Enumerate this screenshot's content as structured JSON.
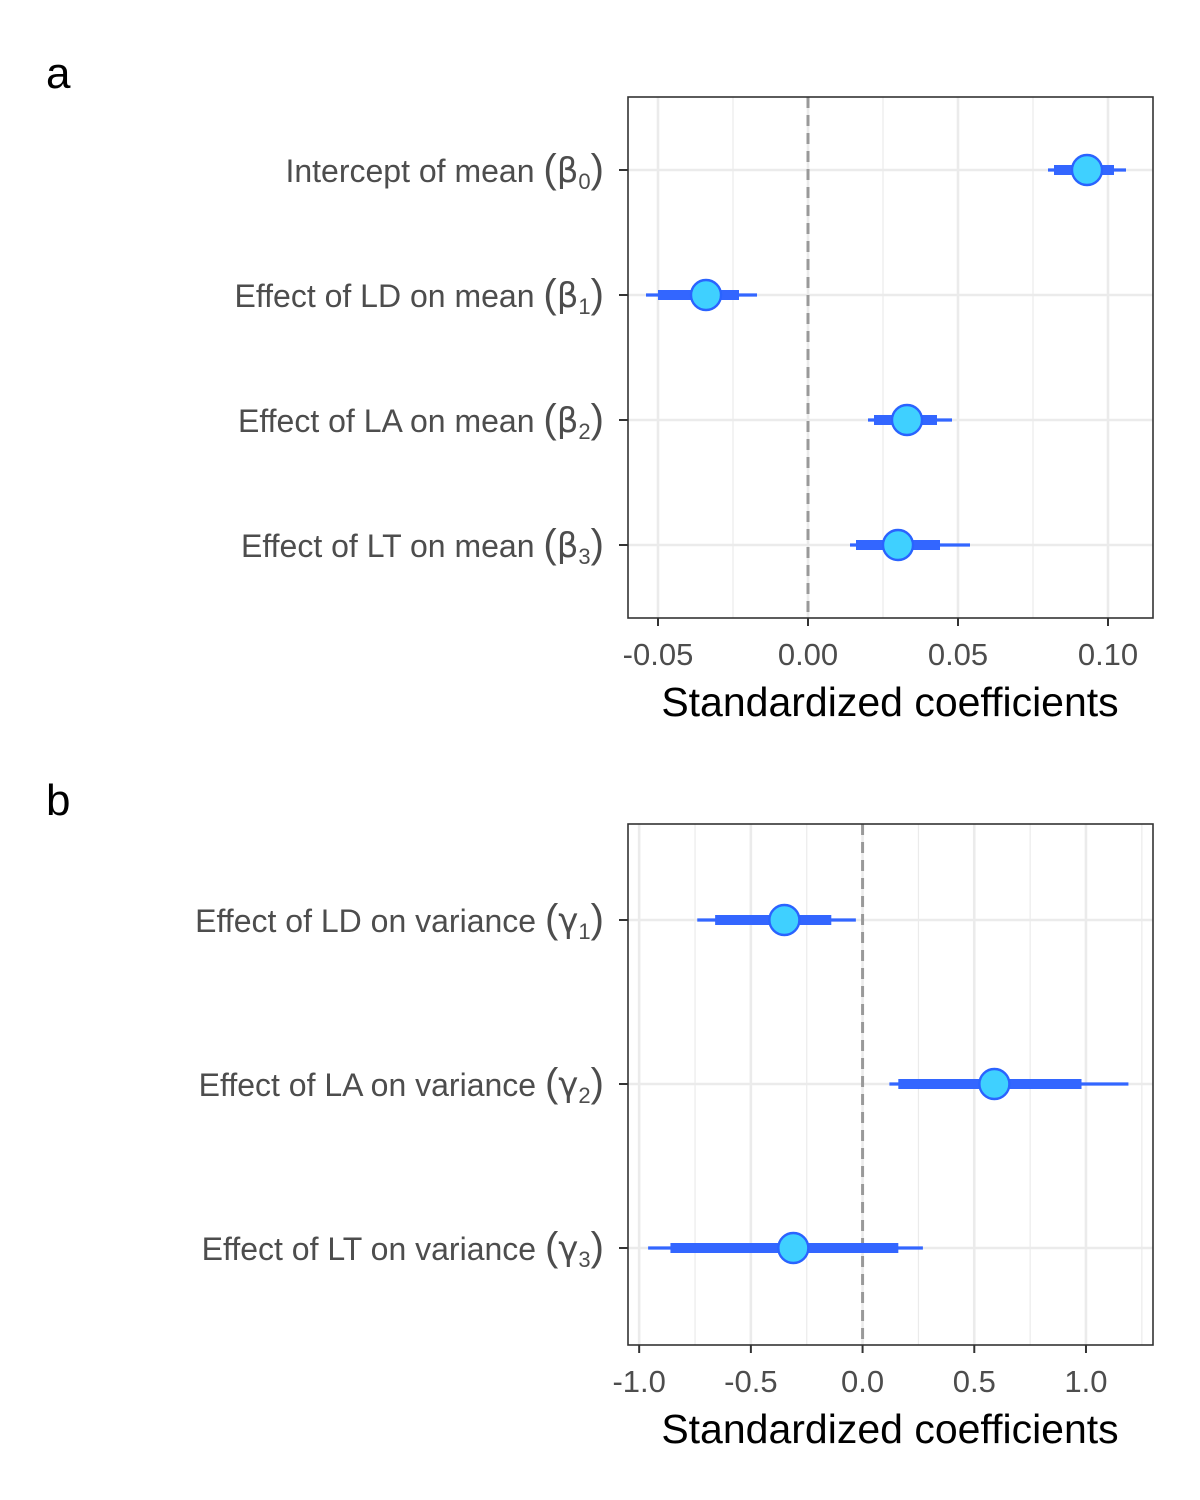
{
  "colors": {
    "point_fill": "#3fd0ff",
    "point_stroke": "#2a63ff",
    "interval": "#3366ff",
    "zero_line": "#999999",
    "grid": "#ebebeb",
    "panel_border": "#333333"
  },
  "chart_data": [
    {
      "panel_label": "a",
      "type": "scatter",
      "subtype": "coefficient-interval-plot",
      "xlabel": "Standardized coefficients",
      "xlim": [
        -0.06,
        0.115
      ],
      "x_ticks": [
        -0.05,
        0.0,
        0.05,
        0.1
      ],
      "x_tick_labels": [
        "-0.05",
        "0.00",
        "0.05",
        "0.10"
      ],
      "reference_line": 0,
      "grid": true,
      "points": [
        {
          "label": "Intercept of mean",
          "symbol": "β",
          "subscript": "0",
          "estimate": 0.093,
          "inner": [
            0.082,
            0.102
          ],
          "outer": [
            0.08,
            0.106
          ]
        },
        {
          "label": "Effect of LD on mean",
          "symbol": "β",
          "subscript": "1",
          "estimate": -0.034,
          "inner": [
            -0.05,
            -0.023
          ],
          "outer": [
            -0.054,
            -0.017
          ]
        },
        {
          "label": "Effect of LA on mean",
          "symbol": "β",
          "subscript": "2",
          "estimate": 0.033,
          "inner": [
            0.022,
            0.043
          ],
          "outer": [
            0.02,
            0.048
          ]
        },
        {
          "label": "Effect of LT on mean",
          "symbol": "β",
          "subscript": "3",
          "estimate": 0.03,
          "inner": [
            0.016,
            0.044
          ],
          "outer": [
            0.014,
            0.054
          ]
        }
      ]
    },
    {
      "panel_label": "b",
      "type": "scatter",
      "subtype": "coefficient-interval-plot",
      "xlabel": "Standardized coefficients",
      "xlim": [
        -1.05,
        1.3
      ],
      "x_ticks": [
        -1.0,
        -0.5,
        0.0,
        0.5,
        1.0
      ],
      "x_tick_labels": [
        "-1.0",
        "-0.5",
        "0.0",
        "0.5",
        "1.0"
      ],
      "reference_line": 0,
      "grid": true,
      "points": [
        {
          "label": "Effect of LD on variance",
          "symbol": "γ",
          "subscript": "1",
          "estimate": -0.35,
          "inner": [
            -0.66,
            -0.14
          ],
          "outer": [
            -0.74,
            -0.03
          ]
        },
        {
          "label": "Effect of LA on variance",
          "symbol": "γ",
          "subscript": "2",
          "estimate": 0.59,
          "inner": [
            0.16,
            0.98
          ],
          "outer": [
            0.12,
            1.19
          ]
        },
        {
          "label": "Effect of LT on variance",
          "symbol": "γ",
          "subscript": "3",
          "estimate": -0.31,
          "inner": [
            -0.86,
            0.16
          ],
          "outer": [
            -0.96,
            0.27
          ]
        }
      ]
    }
  ]
}
